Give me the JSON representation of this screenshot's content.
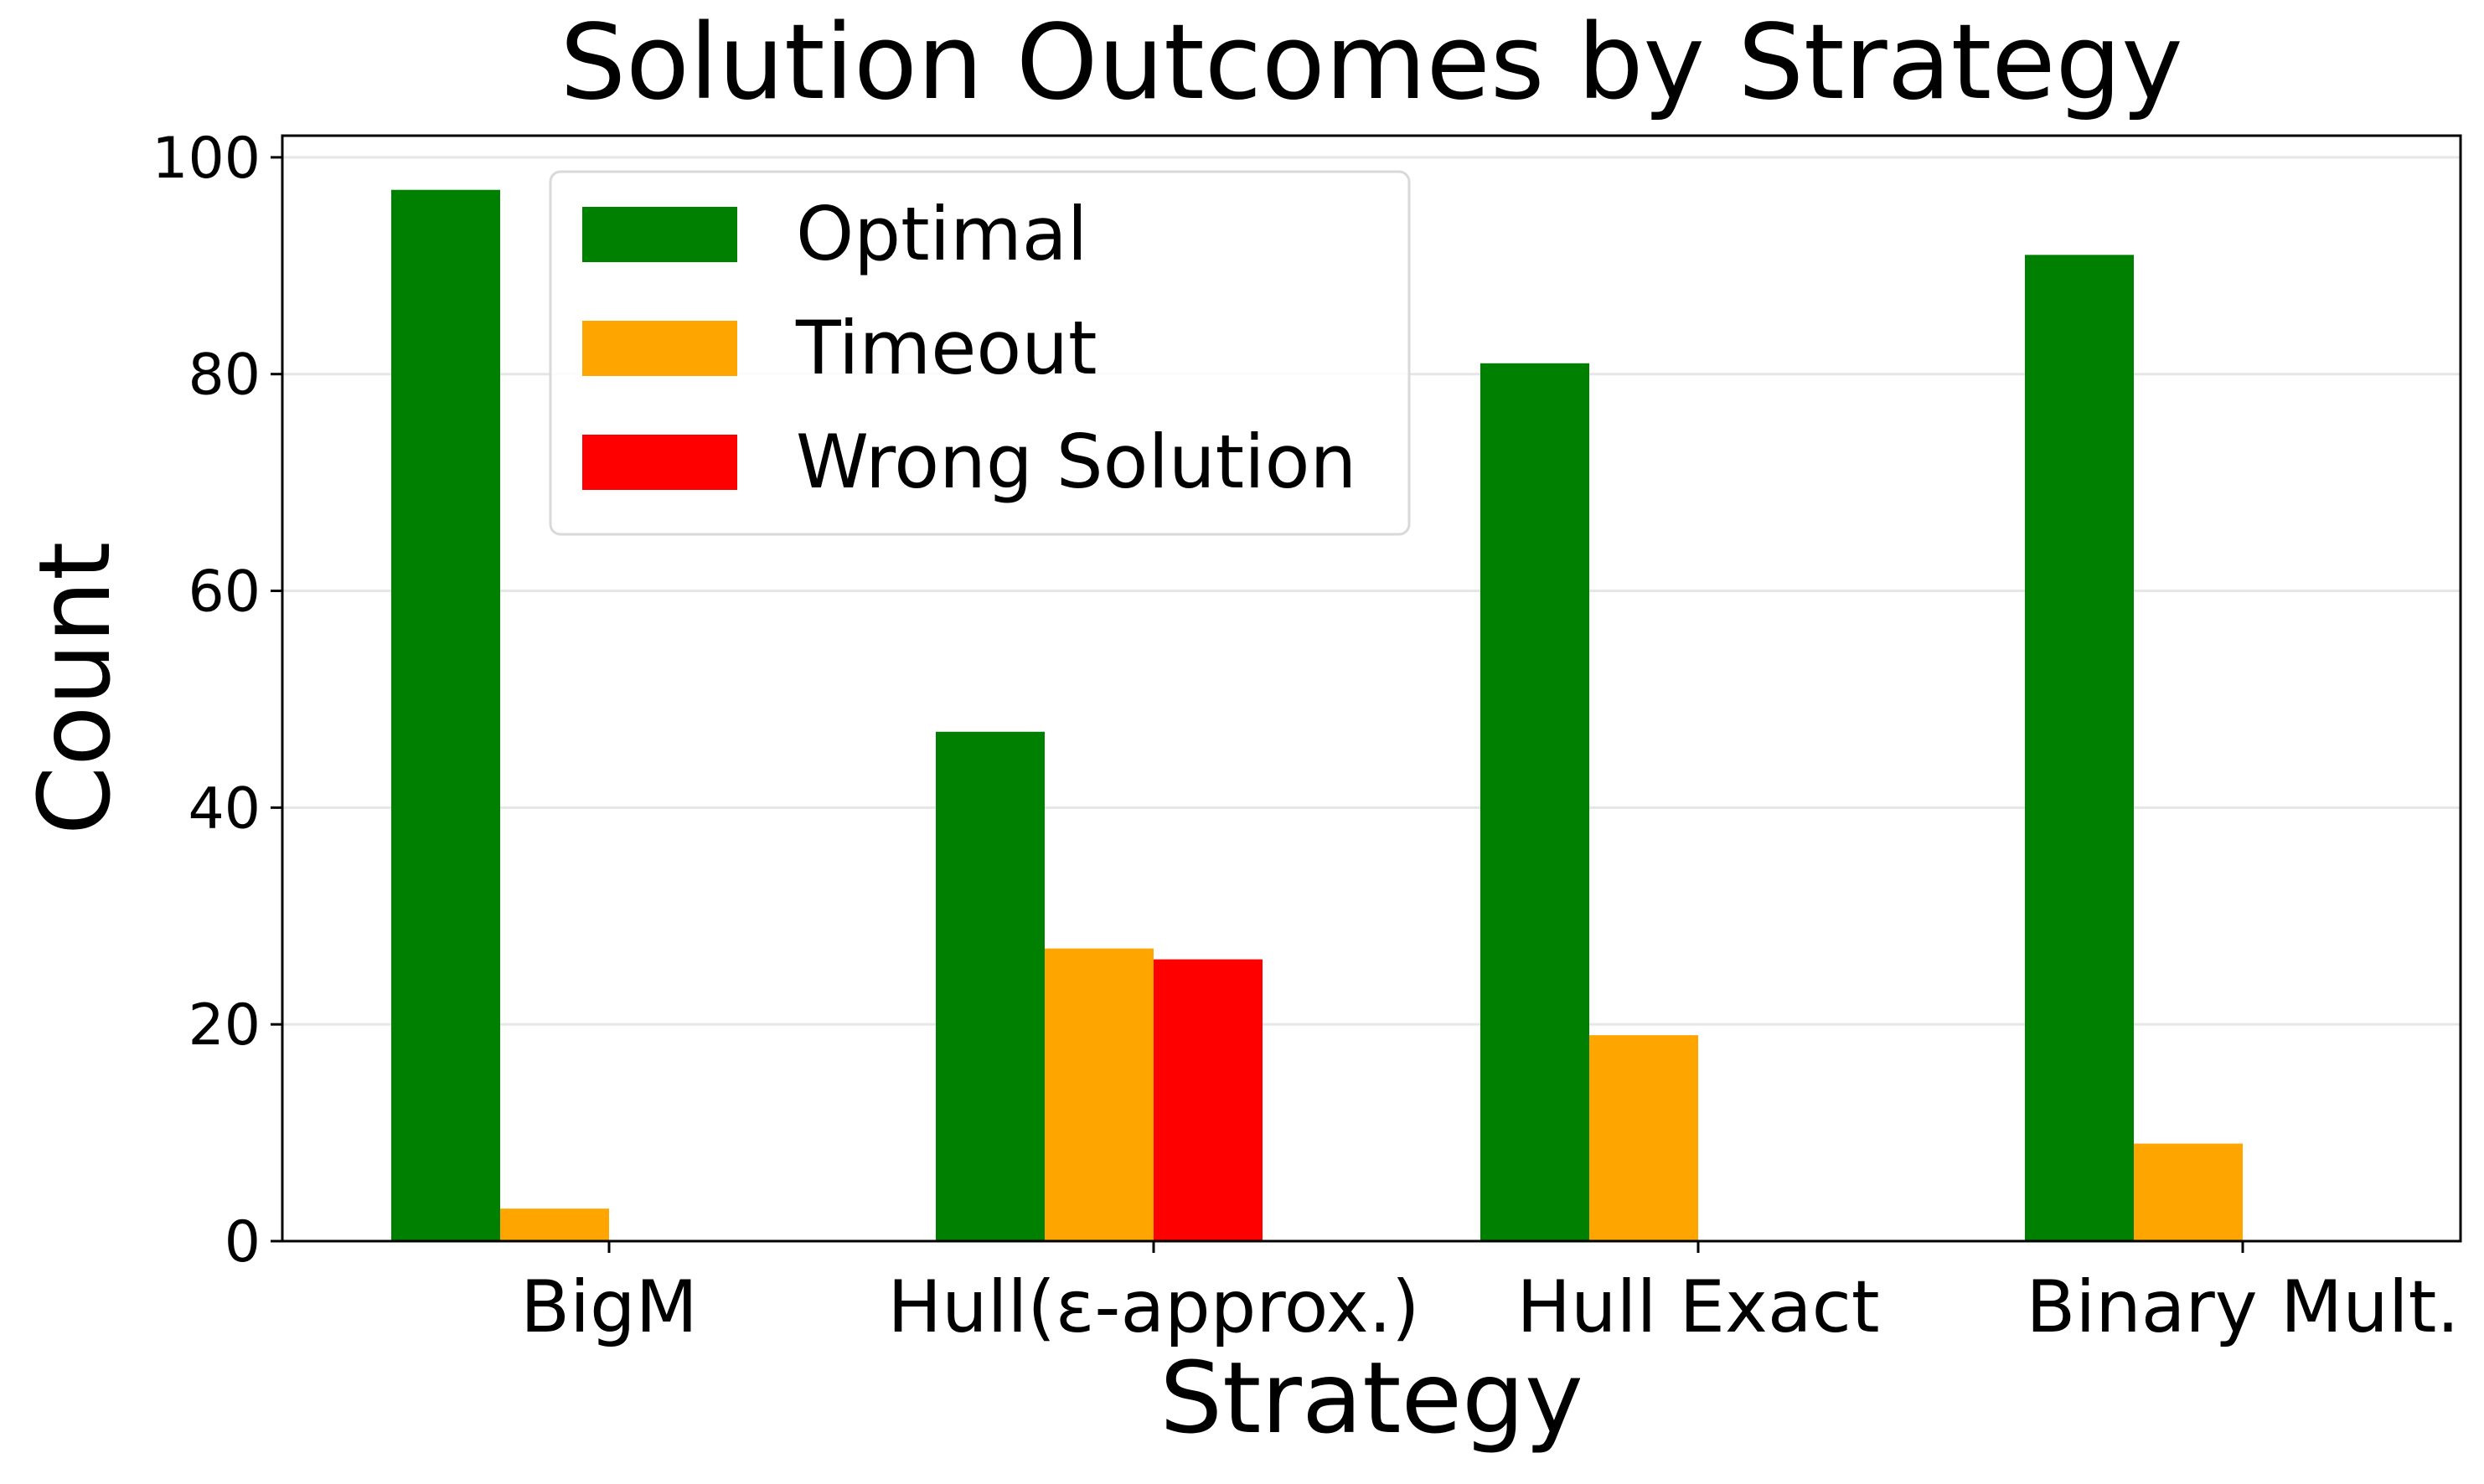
{
  "chart_data": {
    "type": "bar",
    "title": "Solution Outcomes by Strategy",
    "xlabel": "Strategy",
    "ylabel": "Count",
    "categories": [
      "BigM",
      "Hull(ε-approx.)",
      "Hull Exact",
      "Binary Mult."
    ],
    "series": [
      {
        "name": "Optimal",
        "color": "#008000",
        "values": [
          97,
          47,
          81,
          91
        ]
      },
      {
        "name": "Timeout",
        "color": "#FFA500",
        "values": [
          3,
          27,
          19,
          9
        ]
      },
      {
        "name": "Wrong Solution",
        "color": "#FF0000",
        "values": [
          0,
          26,
          0,
          0
        ]
      }
    ],
    "ylim": [
      0,
      102
    ],
    "yticks": [
      0,
      20,
      40,
      60,
      80,
      100
    ],
    "grid": true,
    "legend_position": "upper-left"
  }
}
